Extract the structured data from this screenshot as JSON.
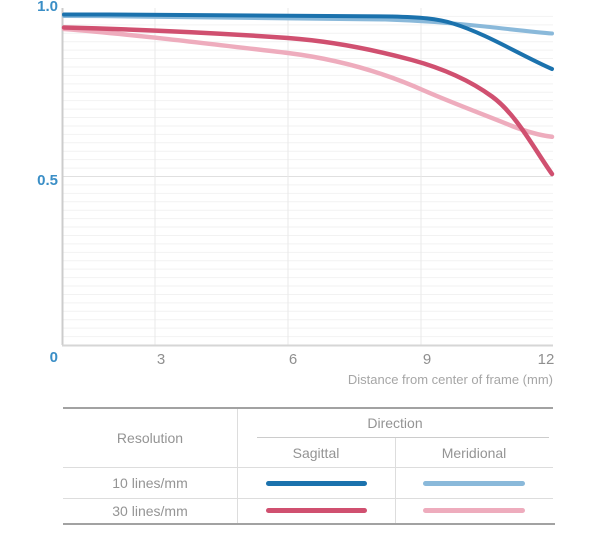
{
  "chart": {
    "y_ticks": [
      "1.0",
      "0.5",
      "0"
    ],
    "x_ticks": [
      "3",
      "6",
      "9",
      "12"
    ],
    "x_axis_title": "Distance from center of frame (mm)"
  },
  "legend_table": {
    "resolution_header": "Resolution",
    "direction_header": "Direction",
    "sagittal_header": "Sagittal",
    "meridional_header": "Meridional",
    "rows": [
      {
        "label": "10 lines/mm"
      },
      {
        "label": "30 lines/mm"
      }
    ]
  },
  "colors": {
    "sagittal_10": "#1b72ad",
    "meridional_10": "#8ab9da",
    "sagittal_30": "#d05070",
    "meridional_30": "#eeacbd",
    "y_label_blue": "#3a8ec6",
    "x_label_gray": "#8f8f8f",
    "grid_minor": "#f2f2f2",
    "grid_mid": "#e0e0e0",
    "grid_vertical": "#e9e9e9",
    "axis_line": "#cccccc"
  },
  "chart_data": {
    "type": "line",
    "title": "MTF chart",
    "x": [
      0,
      3,
      6,
      9,
      10,
      11,
      12
    ],
    "xlabel": "Distance from center of frame (mm)",
    "ylabel": "",
    "ylim": [
      0,
      1.0
    ],
    "yticks": [
      0,
      0.5,
      1.0
    ],
    "xticks": [
      0,
      3,
      6,
      9,
      12
    ],
    "grid": true,
    "legend_position": "table-below",
    "series": [
      {
        "name": "10 lines/mm Sagittal",
        "color": "#1b72ad",
        "values": [
          0.98,
          0.98,
          0.98,
          0.97,
          0.94,
          0.88,
          0.82
        ]
      },
      {
        "name": "10 lines/mm Meridional",
        "color": "#8ab9da",
        "values": [
          0.97,
          0.97,
          0.97,
          0.96,
          0.95,
          0.94,
          0.92
        ]
      },
      {
        "name": "30 lines/mm Sagittal",
        "color": "#d05070",
        "values": [
          0.94,
          0.93,
          0.91,
          0.84,
          0.79,
          0.68,
          0.51
        ]
      },
      {
        "name": "30 lines/mm Meridional",
        "color": "#eeacbd",
        "values": [
          0.94,
          0.91,
          0.87,
          0.76,
          0.72,
          0.67,
          0.62
        ]
      }
    ]
  }
}
